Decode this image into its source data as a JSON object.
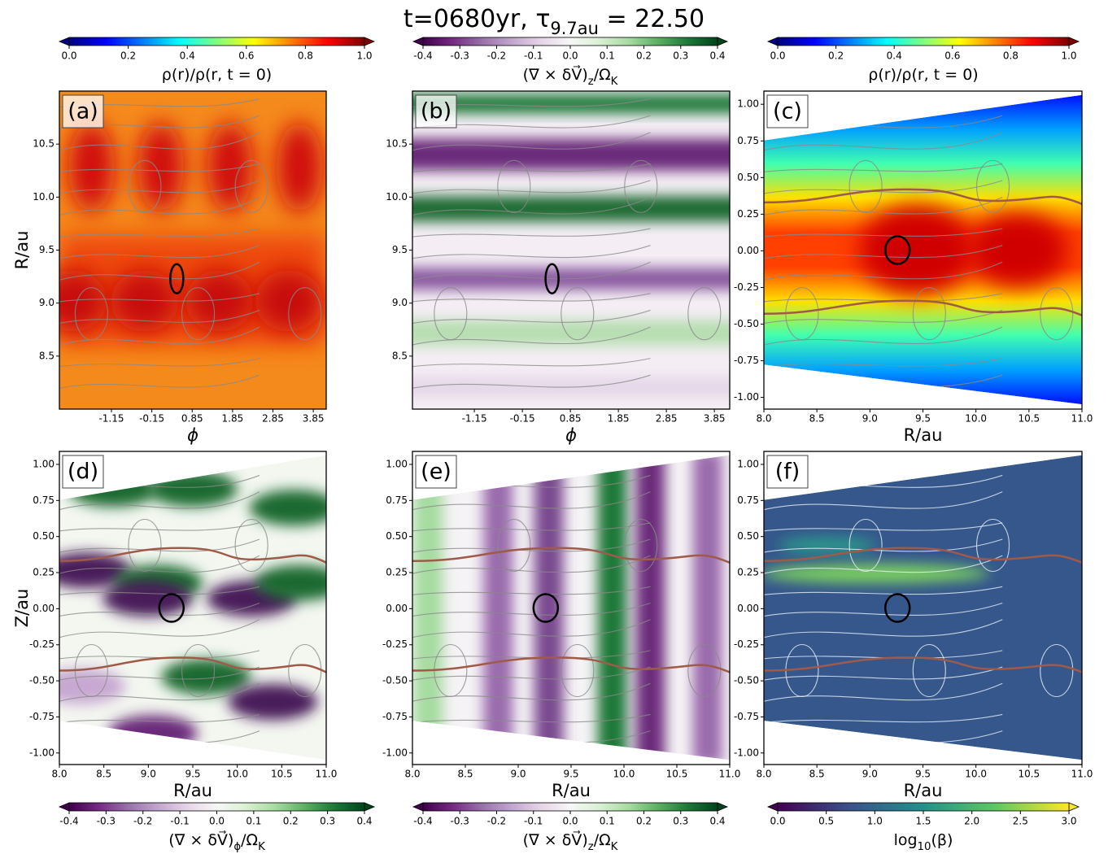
{
  "title": [
    {
      "text": "t=0680yr, τ"
    },
    {
      "text": "9.7au",
      "sub": true
    },
    {
      "text": " = 22.50"
    }
  ],
  "colorbars": [
    {
      "label": [
        {
          "text": "ρ(r)/ρ(r, t = 0)"
        }
      ],
      "lim": [
        0,
        1
      ],
      "ticks": [
        {
          "value": 0,
          "label": "0.0"
        },
        0.2,
        0.4,
        0.6,
        0.8,
        {
          "value": 1,
          "label": "1.0"
        }
      ],
      "colors": [
        "#00007f",
        "#0000ff",
        "#007fff",
        "#00ffff",
        "#7fff7f",
        "#ffff00",
        "#ff7f00",
        "#ff0000",
        "#7f0000"
      ]
    },
    {
      "label": [
        {
          "text": "(∇ × δV⃗)"
        },
        {
          "text": "z",
          "sub": true
        },
        {
          "text": "/Ω"
        },
        {
          "text": "K",
          "sub": true
        }
      ],
      "lim": [
        -0.4,
        0.4
      ],
      "ticks": [
        -0.4,
        -0.3,
        -0.2,
        -0.1,
        {
          "value": 0,
          "label": "0.0"
        },
        0.1,
        0.2,
        0.3,
        0.4
      ],
      "colors": [
        "#40004b",
        "#762a83",
        "#9970ab",
        "#c2a5cf",
        "#e7d4e8",
        "#f7f7f7",
        "#d9f0d3",
        "#a6dba0",
        "#5aae61",
        "#1b7837",
        "#00441b"
      ]
    },
    {
      "label": [
        {
          "text": "ρ(r)/ρ(r, t = 0)"
        }
      ],
      "lim": [
        0,
        1
      ],
      "ticks": [
        {
          "value": 0,
          "label": "0.0"
        },
        0.2,
        0.4,
        0.6,
        0.8,
        {
          "value": 1,
          "label": "1.0"
        }
      ],
      "colors": [
        "#00007f",
        "#0000ff",
        "#007fff",
        "#00ffff",
        "#7fff7f",
        "#ffff00",
        "#ff7f00",
        "#ff0000",
        "#7f0000"
      ]
    },
    {
      "label": [
        {
          "text": "(∇ × δV⃗)"
        },
        {
          "text": "ϕ",
          "sub": true
        },
        {
          "text": "/Ω"
        },
        {
          "text": "K",
          "sub": true
        }
      ],
      "lim": [
        -0.4,
        0.4
      ],
      "ticks": [
        -0.4,
        -0.3,
        -0.2,
        -0.1,
        {
          "value": 0,
          "label": "0.0"
        },
        0.1,
        0.2,
        0.3,
        0.4
      ],
      "colors": [
        "#40004b",
        "#762a83",
        "#9970ab",
        "#c2a5cf",
        "#e7d4e8",
        "#f7f7f7",
        "#d9f0d3",
        "#a6dba0",
        "#5aae61",
        "#1b7837",
        "#00441b"
      ]
    },
    {
      "label": [
        {
          "text": "(∇ × δV⃗)"
        },
        {
          "text": "z",
          "sub": true
        },
        {
          "text": "/Ω"
        },
        {
          "text": "K",
          "sub": true
        }
      ],
      "lim": [
        -0.4,
        0.4
      ],
      "ticks": [
        -0.4,
        -0.3,
        -0.2,
        -0.1,
        {
          "value": 0,
          "label": "0.0"
        },
        0.1,
        0.2,
        0.3,
        0.4
      ],
      "colors": [
        "#40004b",
        "#762a83",
        "#9970ab",
        "#c2a5cf",
        "#e7d4e8",
        "#f7f7f7",
        "#d9f0d3",
        "#a6dba0",
        "#5aae61",
        "#1b7837",
        "#00441b"
      ]
    },
    {
      "label": [
        {
          "text": "log"
        },
        {
          "text": "10",
          "sub": true
        },
        {
          "text": "(β)"
        }
      ],
      "lim": [
        0,
        3
      ],
      "ticks": [
        {
          "value": 0,
          "label": "0.0"
        },
        0.5,
        {
          "value": 1,
          "label": "1.0"
        },
        1.5,
        {
          "value": 2,
          "label": "2.0"
        },
        2.5,
        {
          "value": 3,
          "label": "3.0"
        }
      ],
      "colors": [
        "#440154",
        "#3b528b",
        "#21918c",
        "#5ec962",
        "#fde725"
      ]
    }
  ],
  "panels": [
    {
      "tag": "(a)",
      "xlabel": "ϕ",
      "ylabel": "R/au",
      "xlim": [
        -2.44,
        4.17
      ],
      "ylim": [
        8,
        11
      ],
      "xticks": [
        -1.15,
        -0.15,
        0.85,
        1.85,
        2.85,
        3.85
      ],
      "yticks": [
        8.5,
        {
          "value": 9,
          "label": "9.0"
        },
        9.5,
        {
          "value": 10,
          "label": "10.0"
        },
        10.5
      ]
    },
    {
      "tag": "(b)",
      "xlabel": "ϕ",
      "xlim": [
        -2.44,
        4.17
      ],
      "ylim": [
        8,
        11
      ],
      "xticks": [
        -1.15,
        -0.15,
        0.85,
        1.85,
        2.85,
        3.85
      ],
      "yticks": [
        8.5,
        {
          "value": 9,
          "label": "9.0"
        },
        9.5,
        {
          "value": 10,
          "label": "10.0"
        },
        10.5
      ]
    },
    {
      "tag": "(c)",
      "xlabel": "R/au",
      "xlim": [
        8,
        11
      ],
      "ylim": [
        -1.08,
        1.09
      ],
      "xticks": [
        {
          "value": 8,
          "label": "8.0"
        },
        8.5,
        {
          "value": 9,
          "label": "9.0"
        },
        9.5,
        {
          "value": 10,
          "label": "10.0"
        },
        10.5,
        {
          "value": 11,
          "label": "11.0"
        }
      ],
      "yticks": [
        {
          "value": -1,
          "label": "-1.00"
        },
        -0.75,
        {
          "value": -0.5,
          "label": "-0.50"
        },
        -0.25,
        {
          "value": 0,
          "label": "0.00"
        },
        0.25,
        {
          "value": 0.5,
          "label": "0.50"
        },
        0.75,
        {
          "value": 1,
          "label": "1.00"
        }
      ]
    },
    {
      "tag": "(d)",
      "xlabel": "R/au",
      "ylabel": "Z/au",
      "xlim": [
        8,
        11
      ],
      "ylim": [
        -1.08,
        1.09
      ],
      "xticks": [
        {
          "value": 8,
          "label": "8.0"
        },
        8.5,
        {
          "value": 9,
          "label": "9.0"
        },
        9.5,
        {
          "value": 10,
          "label": "10.0"
        },
        10.5,
        {
          "value": 11,
          "label": "11.0"
        }
      ],
      "yticks": [
        {
          "value": -1,
          "label": "-1.00"
        },
        -0.75,
        {
          "value": -0.5,
          "label": "-0.50"
        },
        -0.25,
        {
          "value": 0,
          "label": "0.00"
        },
        0.25,
        {
          "value": 0.5,
          "label": "0.50"
        },
        0.75,
        {
          "value": 1,
          "label": "1.00"
        }
      ]
    },
    {
      "tag": "(e)",
      "xlabel": "R/au",
      "xlim": [
        8,
        11
      ],
      "ylim": [
        -1.08,
        1.09
      ],
      "xticks": [
        {
          "value": 8,
          "label": "8.0"
        },
        8.5,
        {
          "value": 9,
          "label": "9.0"
        },
        9.5,
        {
          "value": 10,
          "label": "10.0"
        },
        10.5,
        {
          "value": 11,
          "label": "11.0"
        }
      ],
      "yticks": [
        {
          "value": -1,
          "label": "-1.00"
        },
        -0.75,
        {
          "value": -0.5,
          "label": "-0.50"
        },
        -0.25,
        {
          "value": 0,
          "label": "0.00"
        },
        0.25,
        {
          "value": 0.5,
          "label": "0.50"
        },
        0.75,
        {
          "value": 1,
          "label": "1.00"
        }
      ]
    },
    {
      "tag": "(f)",
      "xlabel": "R/au",
      "xlim": [
        8,
        11
      ],
      "ylim": [
        -1.08,
        1.09
      ],
      "xticks": [
        {
          "value": 8,
          "label": "8.0"
        },
        8.5,
        {
          "value": 9,
          "label": "9.0"
        },
        9.5,
        {
          "value": 10,
          "label": "10.0"
        },
        10.5,
        {
          "value": 11,
          "label": "11.0"
        }
      ],
      "yticks": [
        {
          "value": -1,
          "label": "-1.00"
        },
        -0.75,
        {
          "value": -0.5,
          "label": "-0.50"
        },
        -0.25,
        {
          "value": 0,
          "label": "0.00"
        },
        0.25,
        {
          "value": 0.5,
          "label": "0.50"
        },
        0.75,
        {
          "value": 1,
          "label": "1.00"
        }
      ]
    }
  ]
}
